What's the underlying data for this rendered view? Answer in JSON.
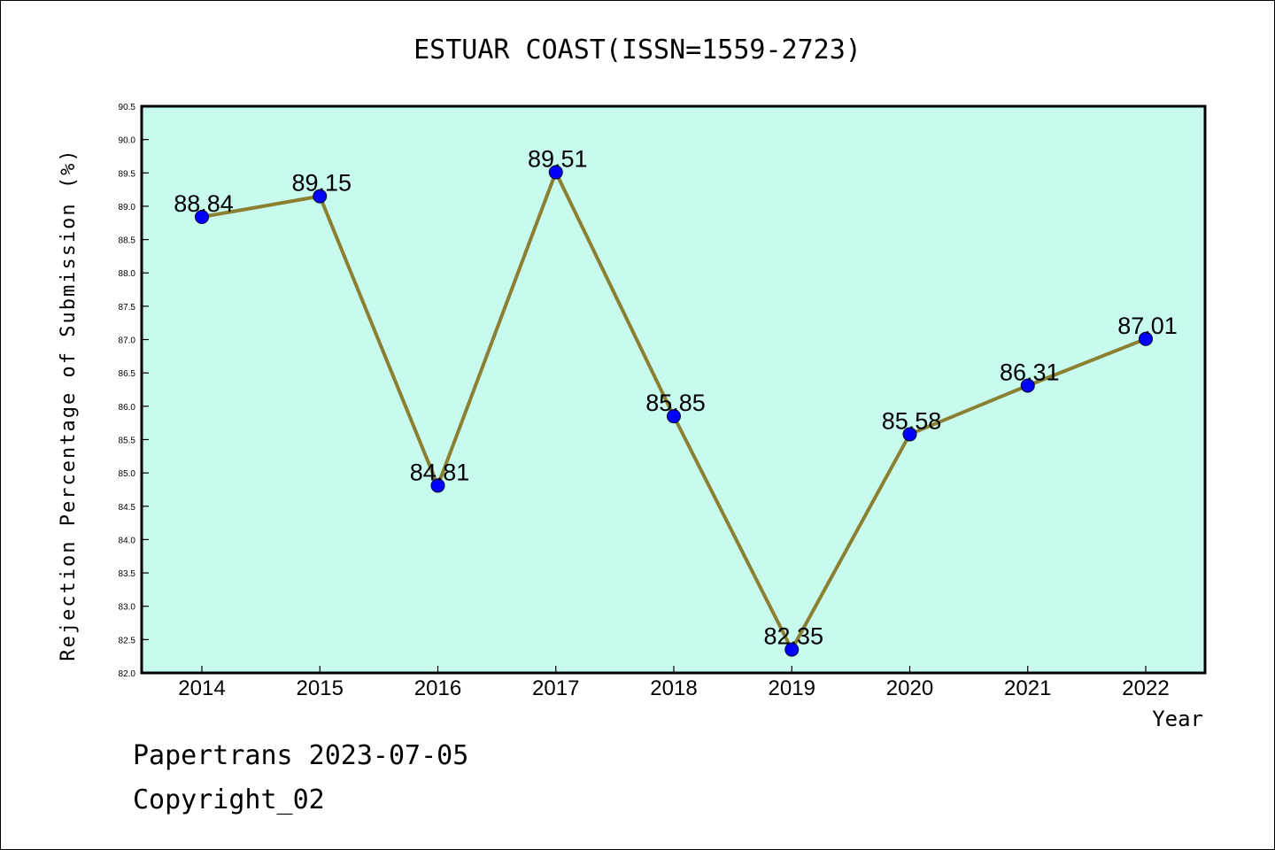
{
  "chart_data": {
    "type": "line",
    "title": "ESTUAR COAST(ISSN=1559-2723)",
    "xlabel": "Year",
    "ylabel": "Rejection Percentage of Submission (%)",
    "categories": [
      "2014",
      "2015",
      "2016",
      "2017",
      "2018",
      "2019",
      "2020",
      "2021",
      "2022"
    ],
    "values": [
      88.84,
      89.15,
      84.81,
      89.51,
      85.85,
      82.35,
      85.58,
      86.31,
      87.01
    ],
    "data_labels": [
      "88.84",
      "89.15",
      "84.81",
      "89.51",
      "85.85",
      "82.35",
      "85.58",
      "86.31",
      "87.01"
    ],
    "ylim": [
      82.0,
      90.5
    ],
    "yticks": [
      "82.0",
      "82.5",
      "83.0",
      "83.5",
      "84.0",
      "84.5",
      "85.0",
      "85.5",
      "86.0",
      "86.5",
      "87.0",
      "87.5",
      "88.0",
      "88.5",
      "89.0",
      "89.5",
      "90.0",
      "90.5"
    ],
    "grid": false,
    "legend": "none"
  },
  "colors": {
    "plot_bg": "#c8fbee",
    "line": "#8b8032",
    "marker": "#0000ff"
  },
  "footer": {
    "line1": "Papertrans 2023-07-05",
    "line2": "Copyright_02"
  }
}
